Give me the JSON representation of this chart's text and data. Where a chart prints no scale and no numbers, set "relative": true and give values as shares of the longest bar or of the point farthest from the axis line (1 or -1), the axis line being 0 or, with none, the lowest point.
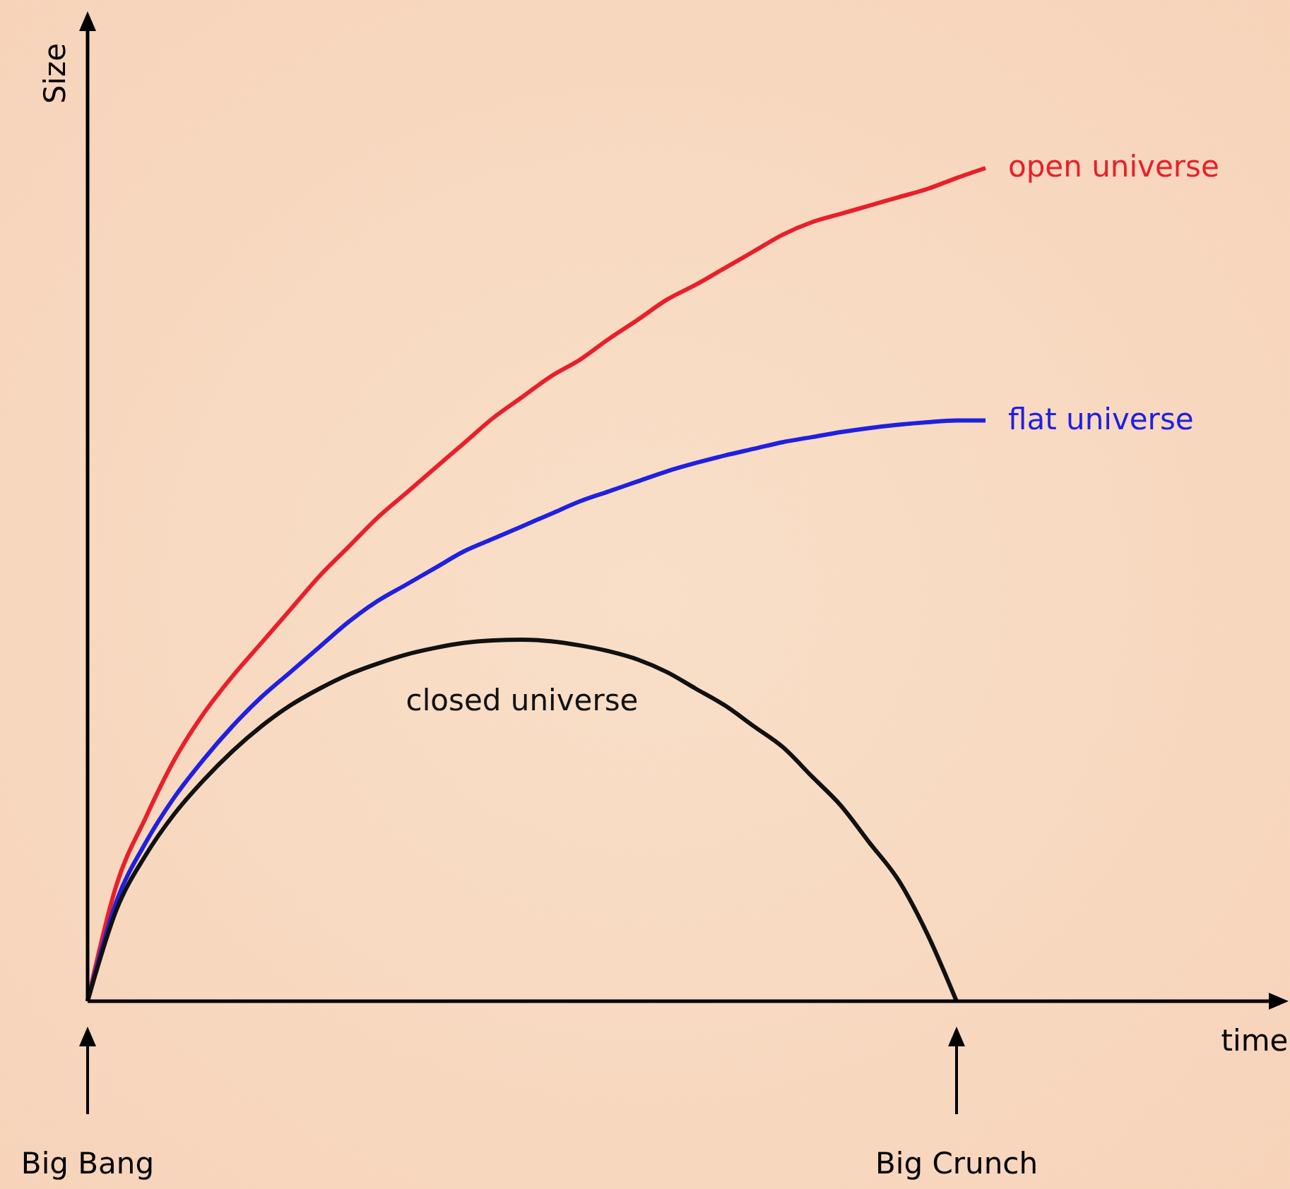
{
  "chart_data": {
    "type": "line",
    "relative": true,
    "xlabel": "time",
    "ylabel": "Size",
    "categories": [
      null,
      null,
      null,
      null,
      null,
      null,
      null,
      null,
      null,
      null,
      null,
      null,
      null,
      null,
      null,
      null,
      null,
      null,
      null,
      null,
      null,
      null,
      null,
      null,
      null,
      null,
      null,
      null,
      null,
      null,
      null,
      null,
      null,
      null,
      null,
      null,
      null,
      null,
      null,
      null,
      null
    ],
    "series": [
      {
        "name": "open universe",
        "color": "#e8202a",
        "values": [
          0,
          0.14,
          0.22,
          0.29,
          0.345,
          0.39,
          0.43,
          0.47,
          0.51,
          0.545,
          0.58,
          0.61,
          0.64,
          0.67,
          0.7,
          0.725,
          0.75,
          0.77,
          0.795,
          0.818,
          0.842,
          0.86,
          0.88,
          0.9,
          0.92,
          0.935,
          0.945,
          0.955,
          0.965,
          0.975,
          0.988,
          1,
          null,
          null,
          null,
          null,
          null,
          null,
          null,
          null,
          null
        ]
      },
      {
        "name": "flat universe",
        "color": "#2020e0",
        "values": [
          0,
          0.12,
          0.19,
          0.245,
          0.29,
          0.33,
          0.365,
          0.395,
          0.425,
          0.455,
          0.48,
          0.5,
          0.52,
          0.54,
          0.555,
          0.57,
          0.585,
          0.6,
          0.612,
          0.624,
          0.636,
          0.646,
          0.655,
          0.663,
          0.671,
          0.677,
          0.683,
          0.688,
          0.692,
          0.695,
          0.697,
          0.697,
          null,
          null,
          null,
          null,
          null,
          null,
          null,
          null,
          null
        ]
      },
      {
        "name": "closed universe",
        "color": "#111111",
        "values": [
          0,
          0.11,
          0.175,
          0.225,
          0.265,
          0.3,
          0.33,
          0.355,
          0.375,
          0.392,
          0.405,
          0.416,
          0.424,
          0.43,
          0.433,
          0.434,
          0.432,
          0.427,
          0.42,
          0.41,
          0.395,
          0.375,
          0.355,
          0.33,
          0.305,
          0.27,
          0.235,
          0.19,
          0.145,
          0.08,
          0,
          null,
          null,
          null,
          null,
          null,
          null,
          null,
          null,
          null,
          null
        ]
      }
    ],
    "annotations": [
      "Big Bang",
      "Big Crunch"
    ],
    "marker": "none",
    "line_style": "solid"
  }
}
